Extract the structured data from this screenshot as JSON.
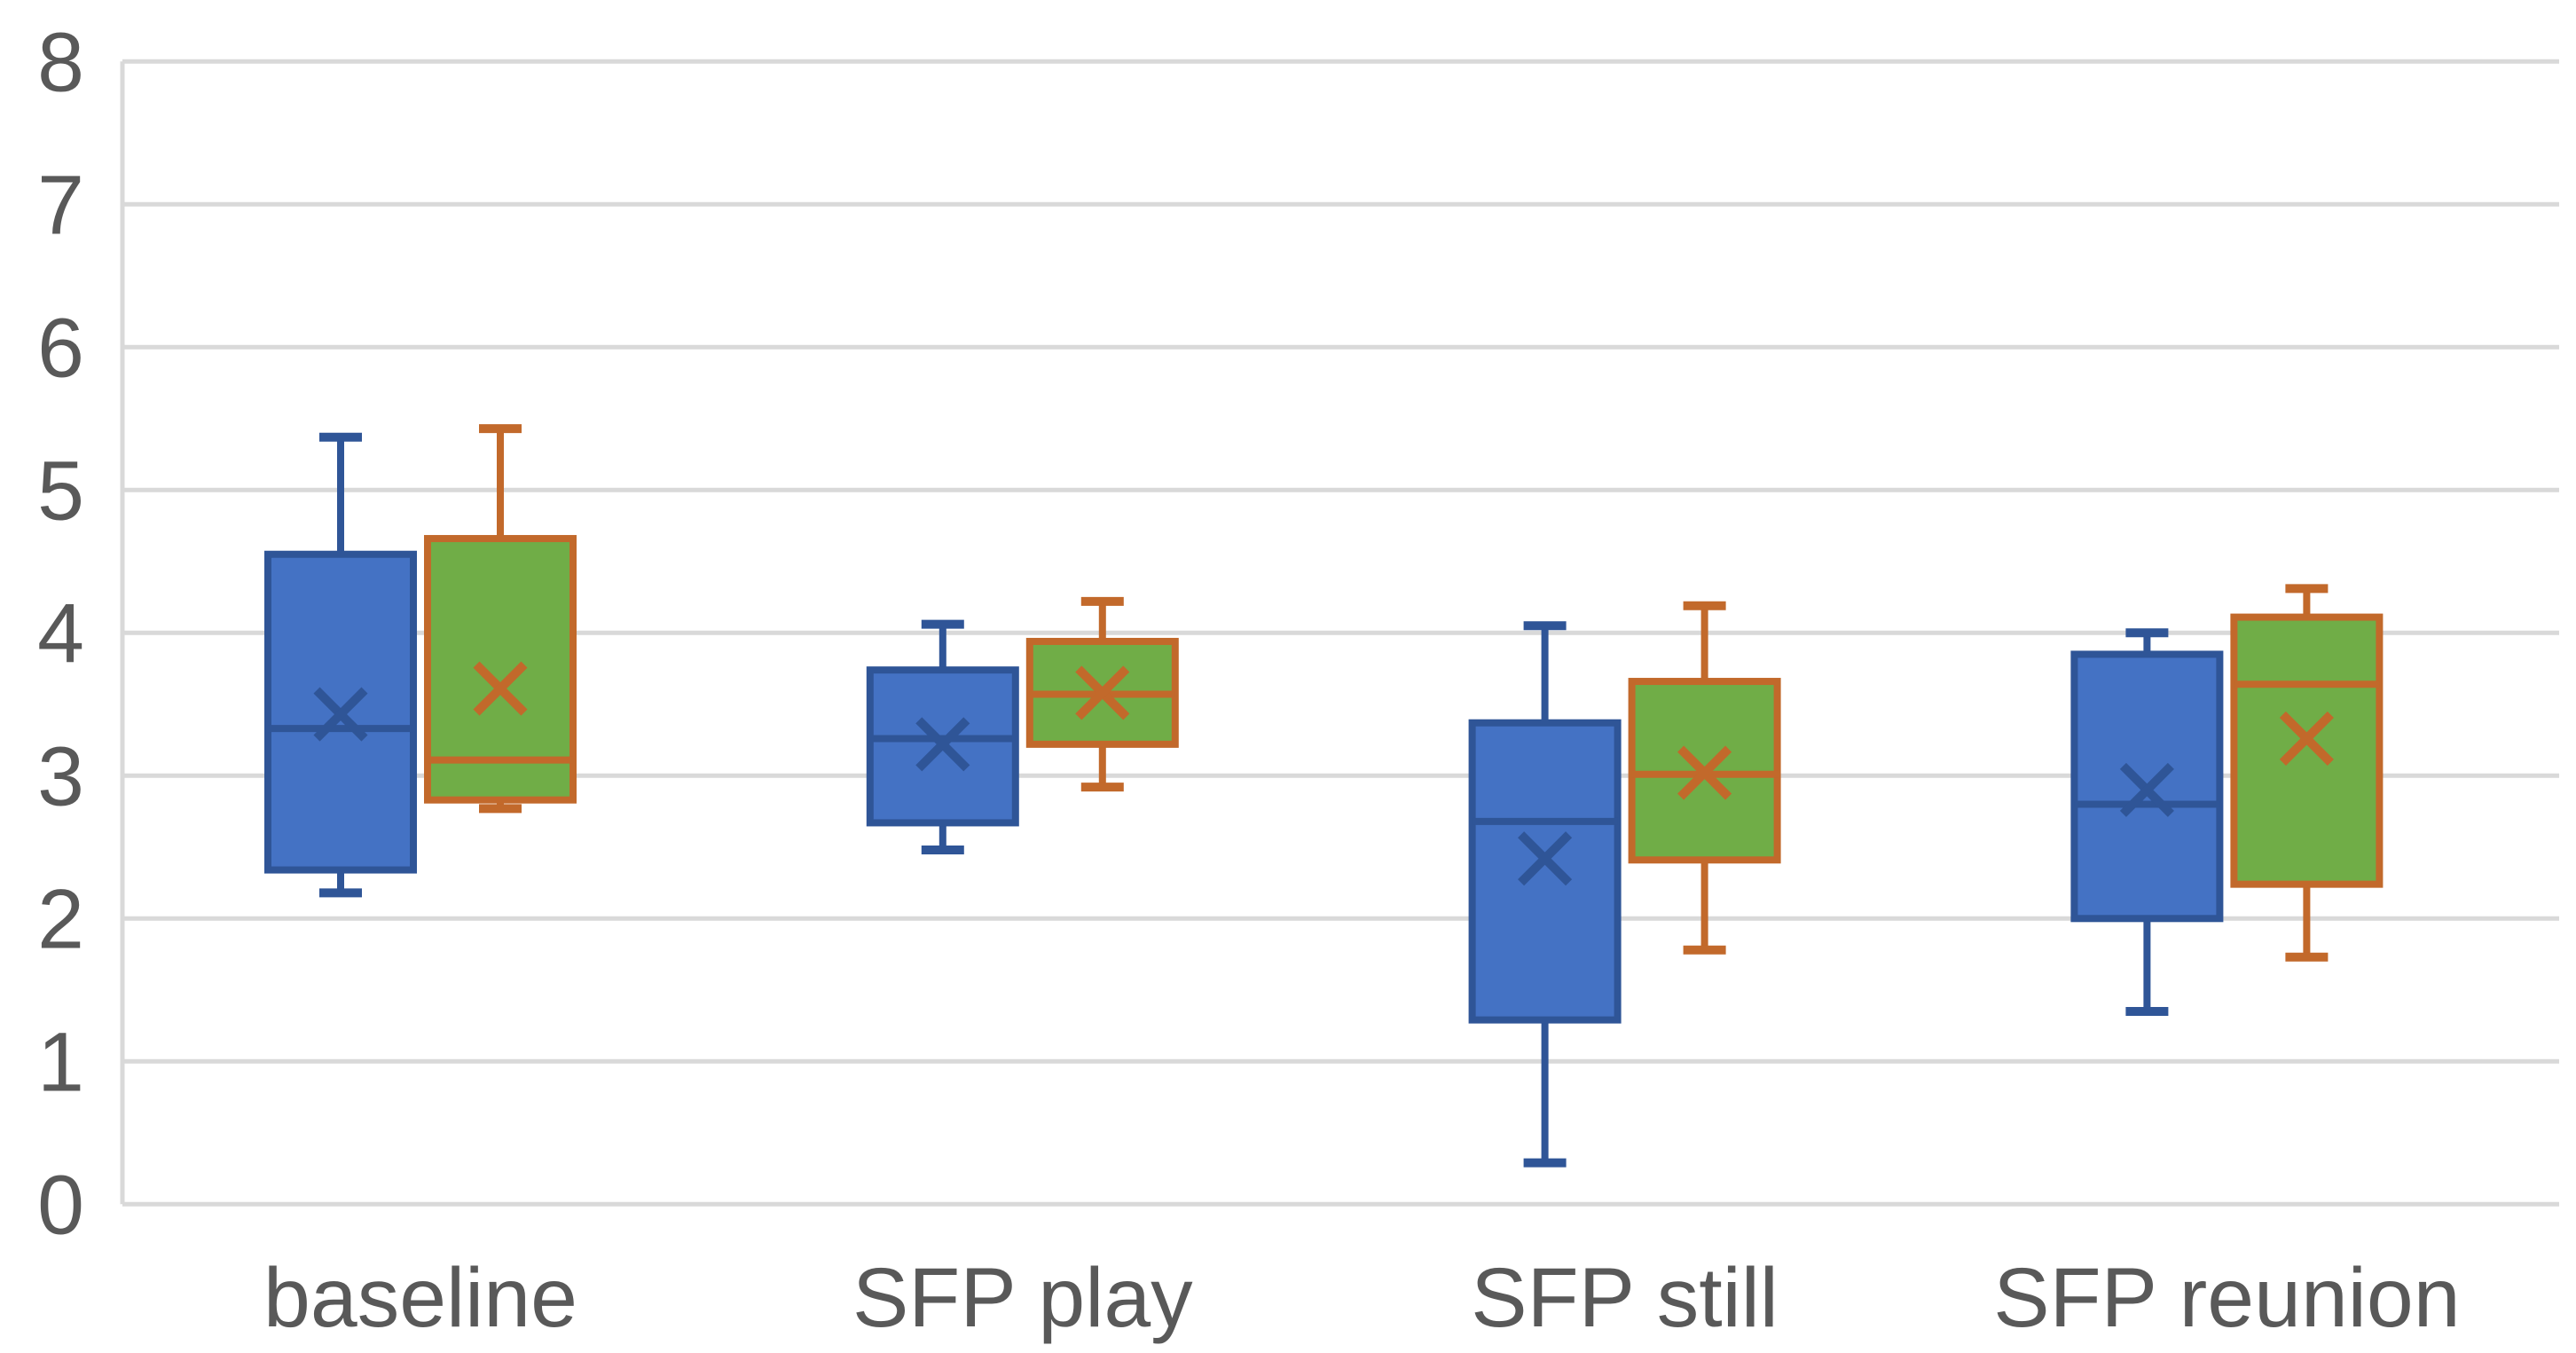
{
  "chart_data": {
    "type": "boxplot",
    "title": "",
    "categories": [
      "baseline",
      "SFP play",
      "SFP still",
      "SFP reunion"
    ],
    "y_axis": {
      "min": 0,
      "max": 8,
      "step": 1,
      "tick_labels": [
        "0",
        "1",
        "2",
        "3",
        "4",
        "5",
        "6",
        "7",
        "8"
      ]
    },
    "x_axis": {
      "label": ""
    },
    "grid": true,
    "legend": "none",
    "series": [
      {
        "name": "blue-series",
        "fill": "#4472C4",
        "stroke": "#2F5597",
        "boxes": [
          {
            "category": "baseline",
            "min": 2.18,
            "q1": 2.34,
            "median": 3.33,
            "q3": 4.55,
            "max": 5.37,
            "mean": 3.43
          },
          {
            "category": "SFP play",
            "min": 2.48,
            "q1": 2.67,
            "median": 3.26,
            "q3": 3.74,
            "max": 4.06,
            "mean": 3.22
          },
          {
            "category": "SFP still",
            "min": 0.29,
            "q1": 1.29,
            "median": 2.68,
            "q3": 3.37,
            "max": 4.05,
            "mean": 2.42
          },
          {
            "category": "SFP reunion",
            "min": 1.35,
            "q1": 2.0,
            "median": 2.8,
            "q3": 3.85,
            "max": 4.0,
            "mean": 2.9
          }
        ]
      },
      {
        "name": "green-series",
        "fill": "#70AD47",
        "stroke": "#C2692B",
        "boxes": [
          {
            "category": "baseline",
            "min": 2.77,
            "q1": 2.83,
            "median": 3.11,
            "q3": 4.66,
            "max": 5.43,
            "mean": 3.61
          },
          {
            "category": "SFP play",
            "min": 2.92,
            "q1": 3.22,
            "median": 3.57,
            "q3": 3.94,
            "max": 4.22,
            "mean": 3.58
          },
          {
            "category": "SFP still",
            "min": 1.78,
            "q1": 2.41,
            "median": 3.01,
            "q3": 3.66,
            "max": 4.19,
            "mean": 3.02
          },
          {
            "category": "SFP reunion",
            "min": 1.73,
            "q1": 2.24,
            "median": 3.64,
            "q3": 4.11,
            "max": 4.31,
            "mean": 3.26
          }
        ]
      }
    ]
  },
  "colors": {
    "gridline": "#D9D9D9",
    "plot_border": "#D9D9D9",
    "axis_text": "#595959",
    "background": "#FFFFFF"
  }
}
